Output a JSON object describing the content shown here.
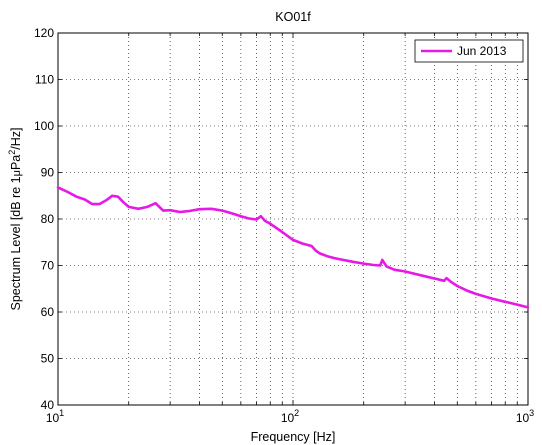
{
  "chart_data": {
    "type": "line",
    "title": "KO01f",
    "xlabel": "Frequency [Hz]",
    "ylabel": {
      "prefix": "Spectrum Level [dB re 1",
      "mu": "μ",
      "pa": "Pa",
      "sup": "2",
      "suffix": "/Hz]"
    },
    "xscale": "log",
    "xlim": [
      10,
      1000
    ],
    "ylim": [
      40,
      120
    ],
    "grid": true,
    "legend_position": "top-right",
    "x_ticks": [
      {
        "base": "10",
        "exp": "1"
      },
      {
        "base": "10",
        "exp": "2"
      },
      {
        "base": "10",
        "exp": "3"
      }
    ],
    "y_ticks": [
      "40",
      "50",
      "60",
      "70",
      "80",
      "90",
      "100",
      "110",
      "120"
    ],
    "series": [
      {
        "name": "Jun 2013",
        "color": "#e619e6",
        "x": [
          10,
          11,
          12,
          13,
          14,
          15,
          16,
          17,
          18,
          19,
          20,
          22,
          24,
          26,
          27,
          28,
          30,
          33,
          36,
          40,
          45,
          50,
          55,
          60,
          65,
          70,
          73,
          76,
          80,
          90,
          100,
          110,
          120,
          125,
          130,
          140,
          150,
          160,
          180,
          200,
          220,
          235,
          240,
          250,
          270,
          300,
          350,
          400,
          440,
          450,
          470,
          500,
          550,
          600,
          700,
          800,
          900,
          1000
        ],
        "y": [
          86.8,
          85.8,
          84.8,
          84.2,
          83.2,
          83.2,
          84.0,
          85.0,
          84.8,
          83.6,
          82.6,
          82.2,
          82.6,
          83.4,
          82.6,
          81.8,
          81.9,
          81.5,
          81.7,
          82.1,
          82.2,
          81.8,
          81.2,
          80.6,
          80.1,
          79.9,
          80.6,
          79.6,
          79.0,
          77.2,
          75.5,
          74.7,
          74.2,
          73.2,
          72.6,
          72.0,
          71.6,
          71.3,
          70.8,
          70.4,
          70.1,
          70.0,
          71.2,
          69.8,
          69.1,
          68.7,
          67.9,
          67.2,
          66.7,
          67.3,
          66.5,
          65.6,
          64.6,
          63.9,
          62.9,
          62.2,
          61.6,
          61.0
        ]
      }
    ]
  }
}
